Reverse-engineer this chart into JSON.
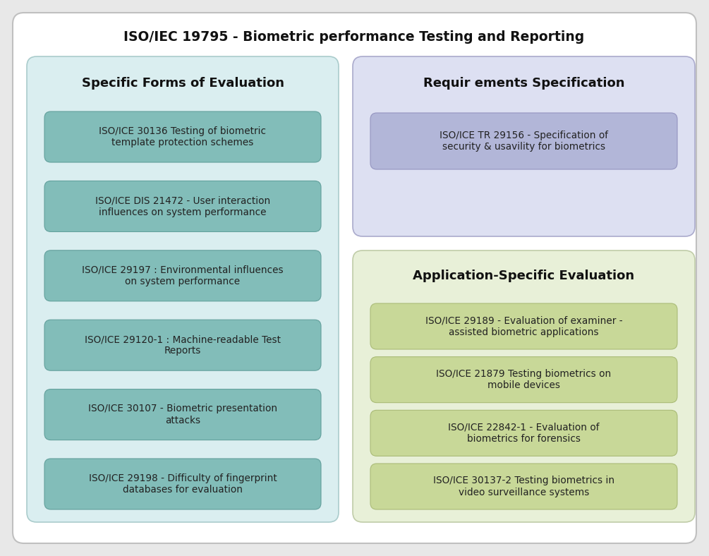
{
  "title": "ISO/IEC 19795 - Biometric performance Testing and Reporting",
  "title_fontsize": 13.5,
  "title_fontweight": "bold",
  "bg_color": "#e8e8e8",
  "outer_box_facecolor": "#ffffff",
  "outer_box_edgecolor": "#c0c0c0",
  "left_panel": {
    "title": "Specific Forms of Evaluation",
    "title_fontsize": 13,
    "bg_color": "#daeef0",
    "edge_color": "#aacccc",
    "items": [
      "ISO/ICE 30136 Testing of biometric\ntemplate protection schemes",
      "ISO/ICE DIS 21472 - User interaction\ninfluences on system performance",
      "ISO/ICE 29197 : Environmental influences\non system performance",
      "ISO/ICE 29120-1 : Machine-readable Test\nReports",
      "ISO/ICE 30107 - Biometric presentation\nattacks",
      "ISO/ICE 29198 - Difficulty of fingerprint\ndatabases for evaluation"
    ],
    "item_bg": "#82bdb9",
    "item_edge": "#62a09c"
  },
  "top_right_panel": {
    "title": "Requir ements Specification",
    "title_fontsize": 13,
    "bg_color": "#dde0f2",
    "edge_color": "#aaaacc",
    "items": [
      "ISO/ICE TR 29156 - Specification of\nsecurity & usavility for biometrics"
    ],
    "item_bg": "#b2b6d8",
    "item_edge": "#9494c0"
  },
  "bottom_right_panel": {
    "title": "Application-Specific Evaluation",
    "title_fontsize": 13,
    "bg_color": "#e8f0d8",
    "edge_color": "#c0cca8",
    "items": [
      "ISO/ICE 29189 - Evaluation of examiner -\nassisted biometric applications",
      "ISO/ICE 21879 Testing biometrics on\nmobile devices",
      "ISO/ICE 22842-1 - Evaluation of\nbiometrics for forensics",
      "ISO/ICE 30137-2 Testing biometrics in\nvideo surveillance systems"
    ],
    "item_bg": "#c8d898",
    "item_edge": "#aabb77"
  },
  "text_color": "#111111",
  "item_text_color": "#222222",
  "item_fontsize": 9.8
}
